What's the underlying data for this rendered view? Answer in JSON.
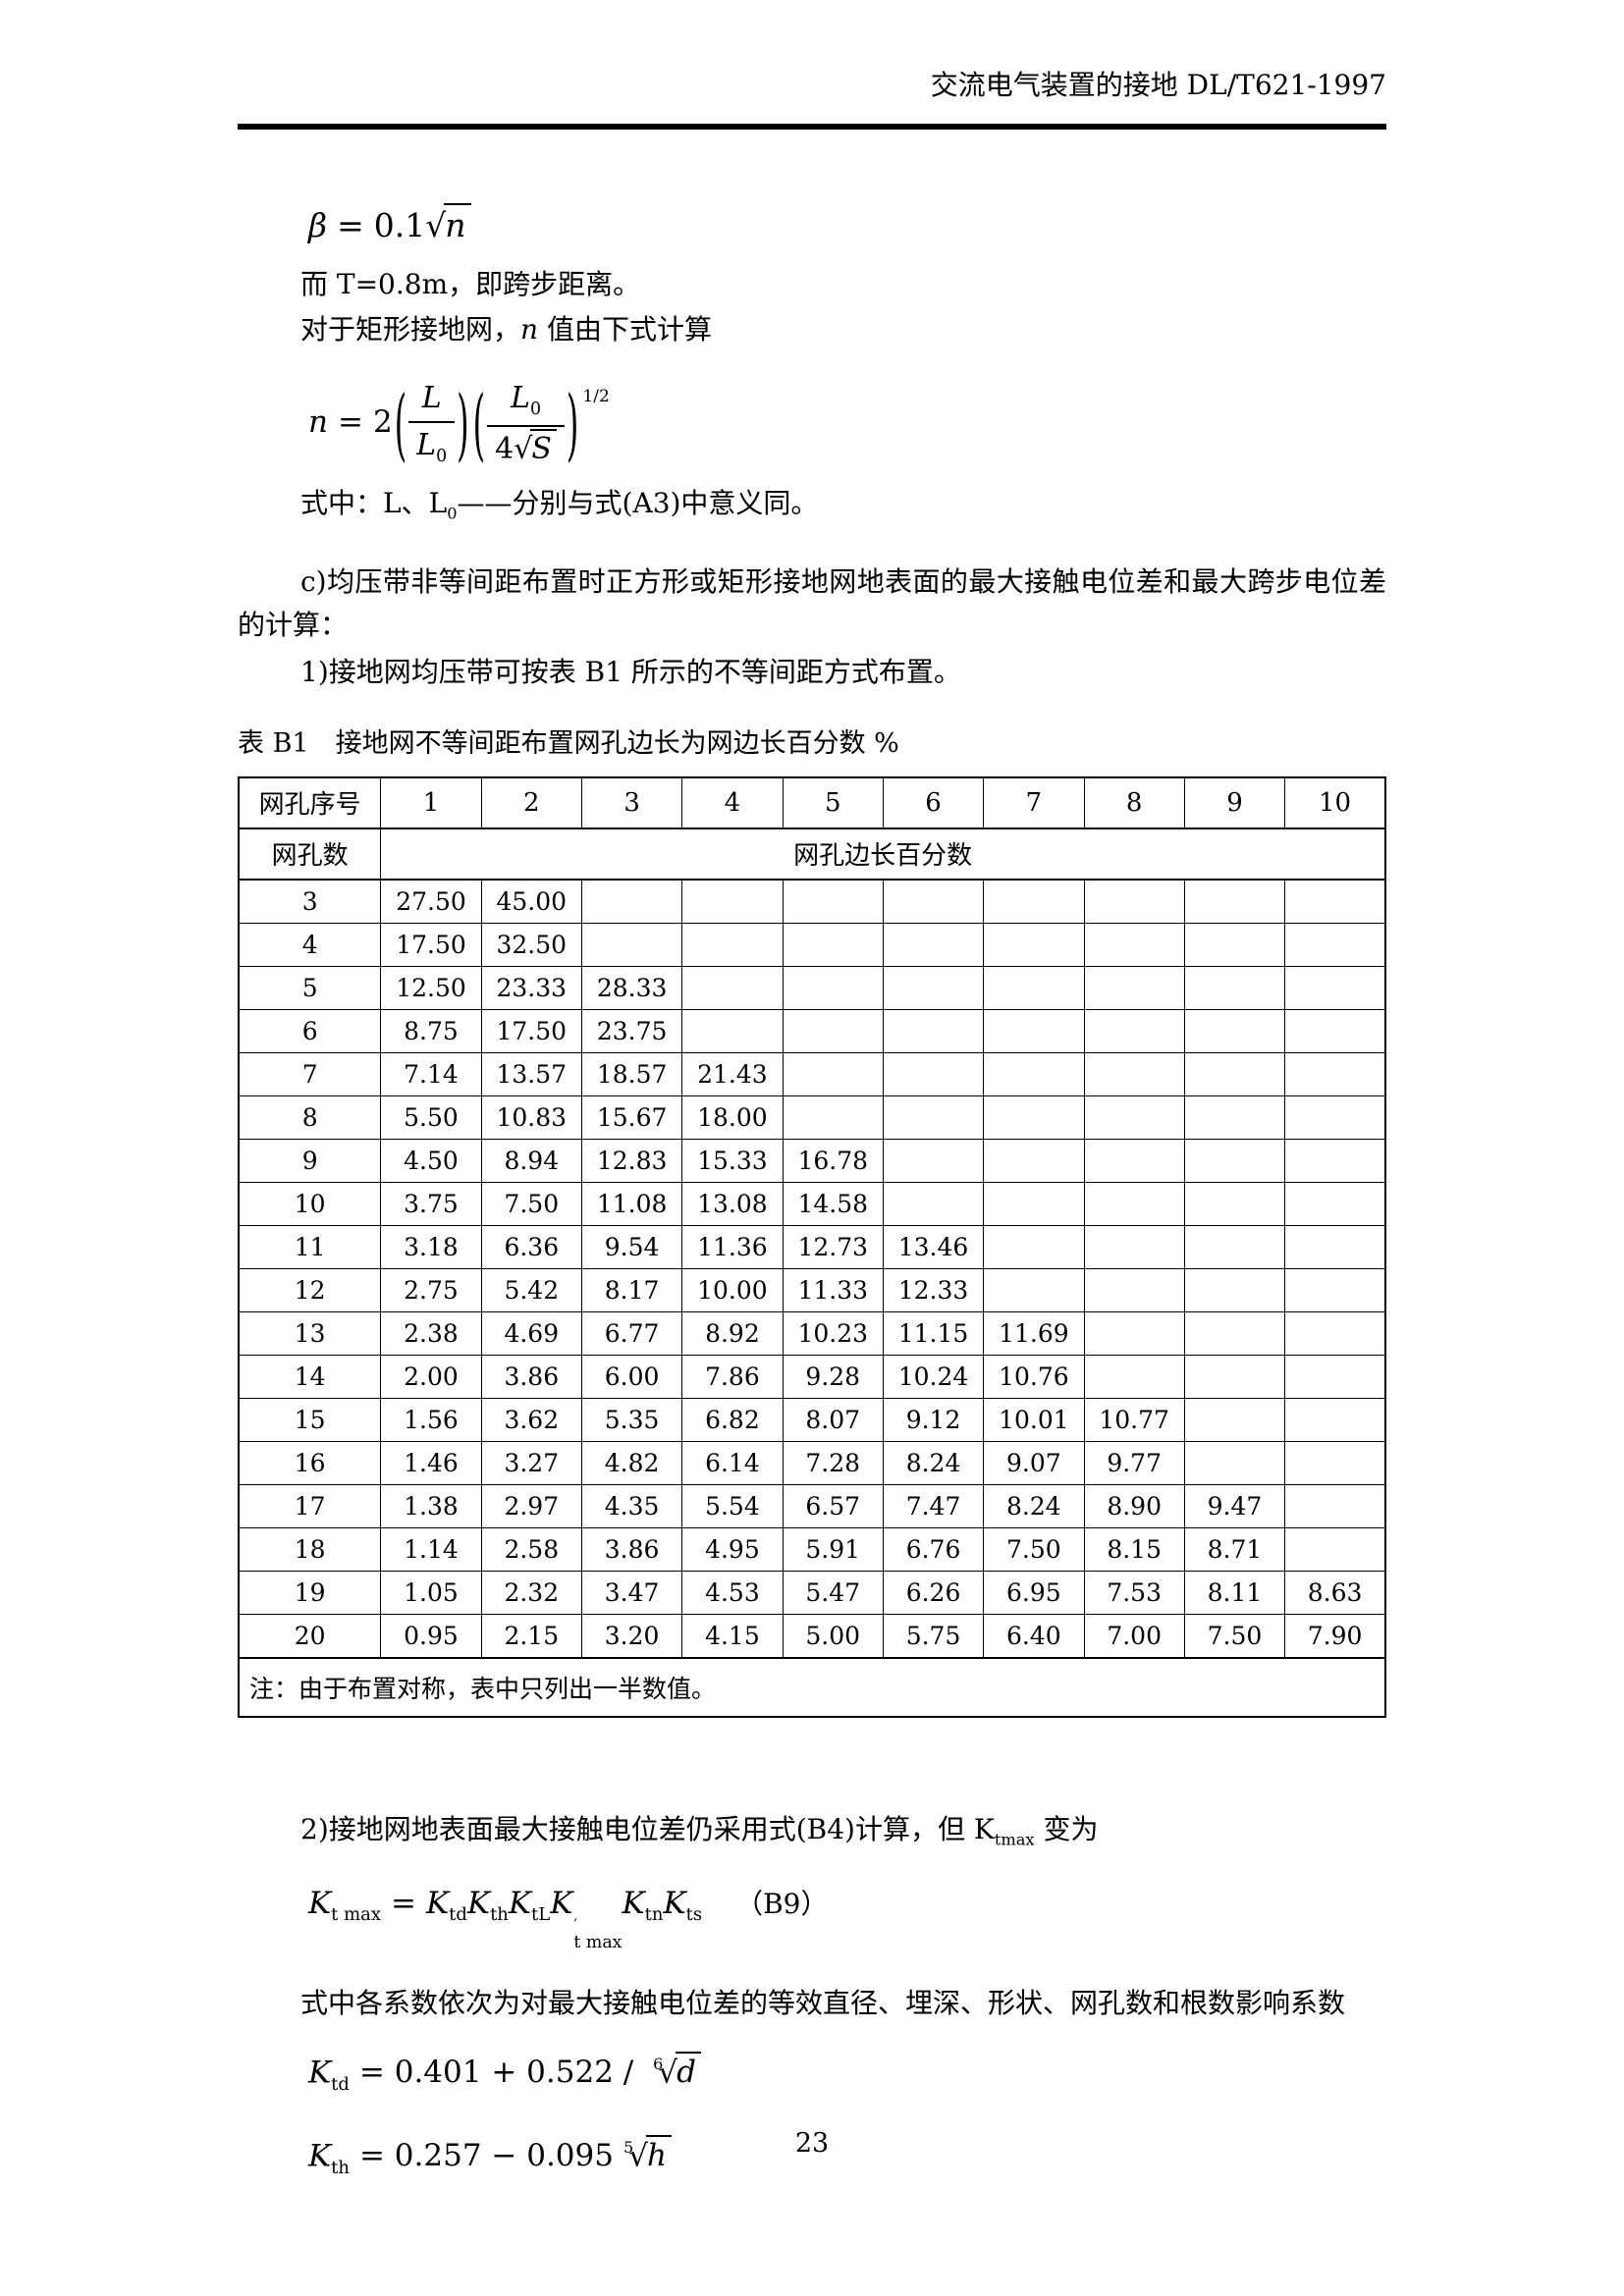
{
  "colors": {
    "text": "#000000",
    "background": "#ffffff",
    "rule": "#000000"
  },
  "header": {
    "title": "交流电气装置的接地 DL/T621-1997"
  },
  "intro": {
    "formula_beta": {
      "lhs": "β",
      "equals": "=",
      "coefficient": "0.1",
      "sqrt_arg": "n"
    },
    "line_step": "而 T=0.8m，即跨步距离。",
    "line_n_intro_pre": "对于矩形接地网，",
    "line_n_intro_var": "n",
    "line_n_intro_post": " 值由下式计算",
    "formula_n": {
      "lhs": "n",
      "equals": "=",
      "coefficient": "2",
      "frac1_num": "L",
      "frac1_den_base": "L",
      "frac1_den_sub": "0",
      "frac2_num_base": "L",
      "frac2_num_sub": "0",
      "frac2_den_coef": "4",
      "frac2_den_sqrt_arg": "S",
      "exponent": "1/2"
    },
    "line_where_pre": "式中：L、L",
    "line_where_sub": "0",
    "line_where_post": "——分别与式(A3)中意义同。",
    "para_c": "c)均压带非等间距布置时正方形或矩形接地网地表面的最大接触电位差和最大跨步电位差的计算：",
    "line_1": "1)接地网均压带可按表 B1 所示的不等间距方式布置。"
  },
  "table": {
    "title": "表 B1　接地网不等间距布置网孔边长为网边长百分数 %",
    "corner_header": "网孔序号",
    "col_headers": [
      "1",
      "2",
      "3",
      "4",
      "5",
      "6",
      "7",
      "8",
      "9",
      "10"
    ],
    "row_header_label": "网孔数",
    "span_header": "网孔边长百分数",
    "rows": [
      {
        "mesh_count": "3",
        "values": [
          "27.50",
          "45.00"
        ]
      },
      {
        "mesh_count": "4",
        "values": [
          "17.50",
          "32.50"
        ]
      },
      {
        "mesh_count": "5",
        "values": [
          "12.50",
          "23.33",
          "28.33"
        ]
      },
      {
        "mesh_count": "6",
        "values": [
          "8.75",
          "17.50",
          "23.75"
        ]
      },
      {
        "mesh_count": "7",
        "values": [
          "7.14",
          "13.57",
          "18.57",
          "21.43"
        ]
      },
      {
        "mesh_count": "8",
        "values": [
          "5.50",
          "10.83",
          "15.67",
          "18.00"
        ]
      },
      {
        "mesh_count": "9",
        "values": [
          "4.50",
          "8.94",
          "12.83",
          "15.33",
          "16.78"
        ]
      },
      {
        "mesh_count": "10",
        "values": [
          "3.75",
          "7.50",
          "11.08",
          "13.08",
          "14.58"
        ]
      },
      {
        "mesh_count": "11",
        "values": [
          "3.18",
          "6.36",
          "9.54",
          "11.36",
          "12.73",
          "13.46"
        ]
      },
      {
        "mesh_count": "12",
        "values": [
          "2.75",
          "5.42",
          "8.17",
          "10.00",
          "11.33",
          "12.33"
        ]
      },
      {
        "mesh_count": "13",
        "values": [
          "2.38",
          "4.69",
          "6.77",
          "8.92",
          "10.23",
          "11.15",
          "11.69"
        ]
      },
      {
        "mesh_count": "14",
        "values": [
          "2.00",
          "3.86",
          "6.00",
          "7.86",
          "9.28",
          "10.24",
          "10.76"
        ]
      },
      {
        "mesh_count": "15",
        "values": [
          "1.56",
          "3.62",
          "5.35",
          "6.82",
          "8.07",
          "9.12",
          "10.01",
          "10.77"
        ]
      },
      {
        "mesh_count": "16",
        "values": [
          "1.46",
          "3.27",
          "4.82",
          "6.14",
          "7.28",
          "8.24",
          "9.07",
          "9.77"
        ]
      },
      {
        "mesh_count": "17",
        "values": [
          "1.38",
          "2.97",
          "4.35",
          "5.54",
          "6.57",
          "7.47",
          "8.24",
          "8.90",
          "9.47"
        ]
      },
      {
        "mesh_count": "18",
        "values": [
          "1.14",
          "2.58",
          "3.86",
          "4.95",
          "5.91",
          "6.76",
          "7.50",
          "8.15",
          "8.71"
        ]
      },
      {
        "mesh_count": "19",
        "values": [
          "1.05",
          "2.32",
          "3.47",
          "4.53",
          "5.47",
          "6.26",
          "6.95",
          "7.53",
          "8.11",
          "8.63"
        ]
      },
      {
        "mesh_count": "20",
        "values": [
          "0.95",
          "2.15",
          "3.20",
          "4.15",
          "5.00",
          "5.75",
          "6.40",
          "7.00",
          "7.50",
          "7.90"
        ]
      }
    ],
    "note": "注：由于布置对称，表中只列出一半数值。"
  },
  "section2": {
    "para_2_pre": "2)接地网地表面最大接触电位差仍采用式(B4)计算，但 K",
    "para_2_sub": "tmax",
    "para_2_post": " 变为",
    "formula_ktmax": {
      "lhs_base": "K",
      "lhs_sub": "t max",
      "equals": "=",
      "factors": [
        {
          "base": "K",
          "sub": "td"
        },
        {
          "base": "K",
          "sub": "th"
        },
        {
          "base": "K",
          "sub": "tL"
        },
        {
          "base": "K",
          "prime": "′",
          "sub": "t max"
        },
        {
          "base": "K",
          "sub": "tn"
        },
        {
          "base": "K",
          "sub": "ts"
        }
      ],
      "eq_number": "（B9）"
    },
    "para_coeffs": "式中各系数依次为对最大接触电位差的等效直径、埋深、形状、网孔数和根数影响系数",
    "formula_ktd": {
      "lhs_base": "K",
      "lhs_sub": "td",
      "rhs": "= 0.401 + 0.522 / ",
      "root_index": "6",
      "root_arg": "d"
    },
    "formula_kth": {
      "lhs_base": "K",
      "lhs_sub": "th",
      "rhs": "= 0.257 − 0.095",
      "root_index": "5",
      "root_arg": "h"
    }
  },
  "footer": {
    "page_number": "23"
  }
}
